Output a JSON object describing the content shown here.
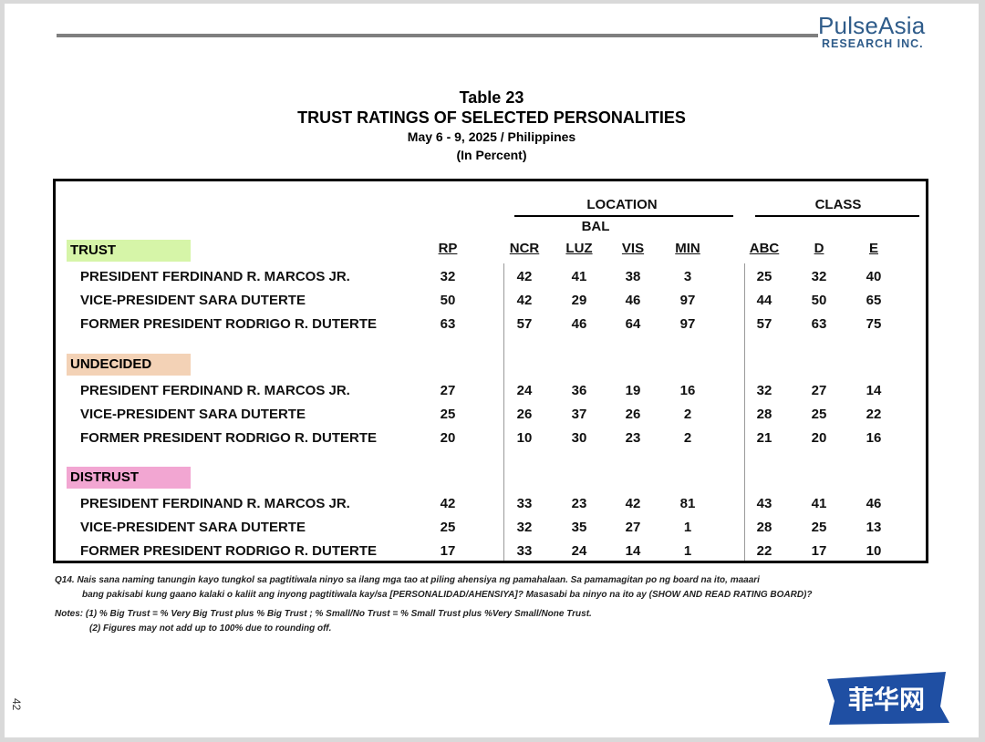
{
  "logo": {
    "line1": "PulseAsia",
    "line2": "RESEARCH INC."
  },
  "title": {
    "table_no": "Table 23",
    "main": "TRUST RATINGS OF SELECTED PERSONALITIES",
    "date": "May 6 - 9, 2025 / Philippines",
    "unit": "(In Percent)"
  },
  "table": {
    "group_location": "LOCATION",
    "group_class": "CLASS",
    "bal": "BAL",
    "columns": [
      "RP",
      "NCR",
      "LUZ",
      "VIS",
      "MIN",
      "ABC",
      "D",
      "E"
    ],
    "sections": [
      {
        "label": "TRUST",
        "color": "#d6f5a8",
        "rows": [
          {
            "name": "PRESIDENT FERDINAND R. MARCOS JR.",
            "values": [
              "32",
              "42",
              "41",
              "38",
              "3",
              "25",
              "32",
              "40"
            ]
          },
          {
            "name": "VICE-PRESIDENT SARA DUTERTE",
            "values": [
              "50",
              "42",
              "29",
              "46",
              "97",
              "44",
              "50",
              "65"
            ]
          },
          {
            "name": "FORMER PRESIDENT RODRIGO R. DUTERTE",
            "values": [
              "63",
              "57",
              "46",
              "64",
              "97",
              "57",
              "63",
              "75"
            ]
          }
        ]
      },
      {
        "label": "UNDECIDED",
        "color": "#f3d2b6",
        "rows": [
          {
            "name": "PRESIDENT FERDINAND R. MARCOS JR.",
            "values": [
              "27",
              "24",
              "36",
              "19",
              "16",
              "32",
              "27",
              "14"
            ]
          },
          {
            "name": "VICE-PRESIDENT SARA DUTERTE",
            "values": [
              "25",
              "26",
              "37",
              "26",
              "2",
              "28",
              "25",
              "22"
            ]
          },
          {
            "name": "FORMER PRESIDENT RODRIGO R. DUTERTE",
            "values": [
              "20",
              "10",
              "30",
              "23",
              "2",
              "21",
              "20",
              "16"
            ]
          }
        ]
      },
      {
        "label": "DISTRUST",
        "color": "#f2a6d2",
        "rows": [
          {
            "name": "PRESIDENT FERDINAND R. MARCOS JR.",
            "values": [
              "42",
              "33",
              "23",
              "42",
              "81",
              "43",
              "41",
              "46"
            ]
          },
          {
            "name": "VICE-PRESIDENT SARA DUTERTE",
            "values": [
              "25",
              "32",
              "35",
              "27",
              "1",
              "28",
              "25",
              "13"
            ]
          },
          {
            "name": "FORMER PRESIDENT RODRIGO R. DUTERTE",
            "values": [
              "17",
              "33",
              "24",
              "14",
              "1",
              "22",
              "17",
              "10"
            ]
          }
        ]
      }
    ]
  },
  "question": {
    "line1": "Q14.  Nais sana naming tanungin kayo tungkol sa pagtitiwala ninyo sa ilang mga tao at piling ahensiya ng pamahalaan. Sa pamamagitan po ng board na ito, maaari",
    "line2": "bang pakisabi kung gaano kalaki o kaliit ang inyong pagtitiwala kay/sa [PERSONALIDAD/AHENSIYA]? Masasabi ba ninyo na ito ay (SHOW AND READ RATING BOARD)?"
  },
  "notes": {
    "line1": "Notes:  (1) % Big Trust = % Very Big Trust plus % Big Trust ; % Small/No Trust = % Small Trust plus %Very Small/None Trust.",
    "line2": "(2) Figures may not add up to 100% due to rounding off."
  },
  "page_number": "42",
  "watermark": {
    "text": "菲华网",
    "color": "#1f4fa3"
  }
}
